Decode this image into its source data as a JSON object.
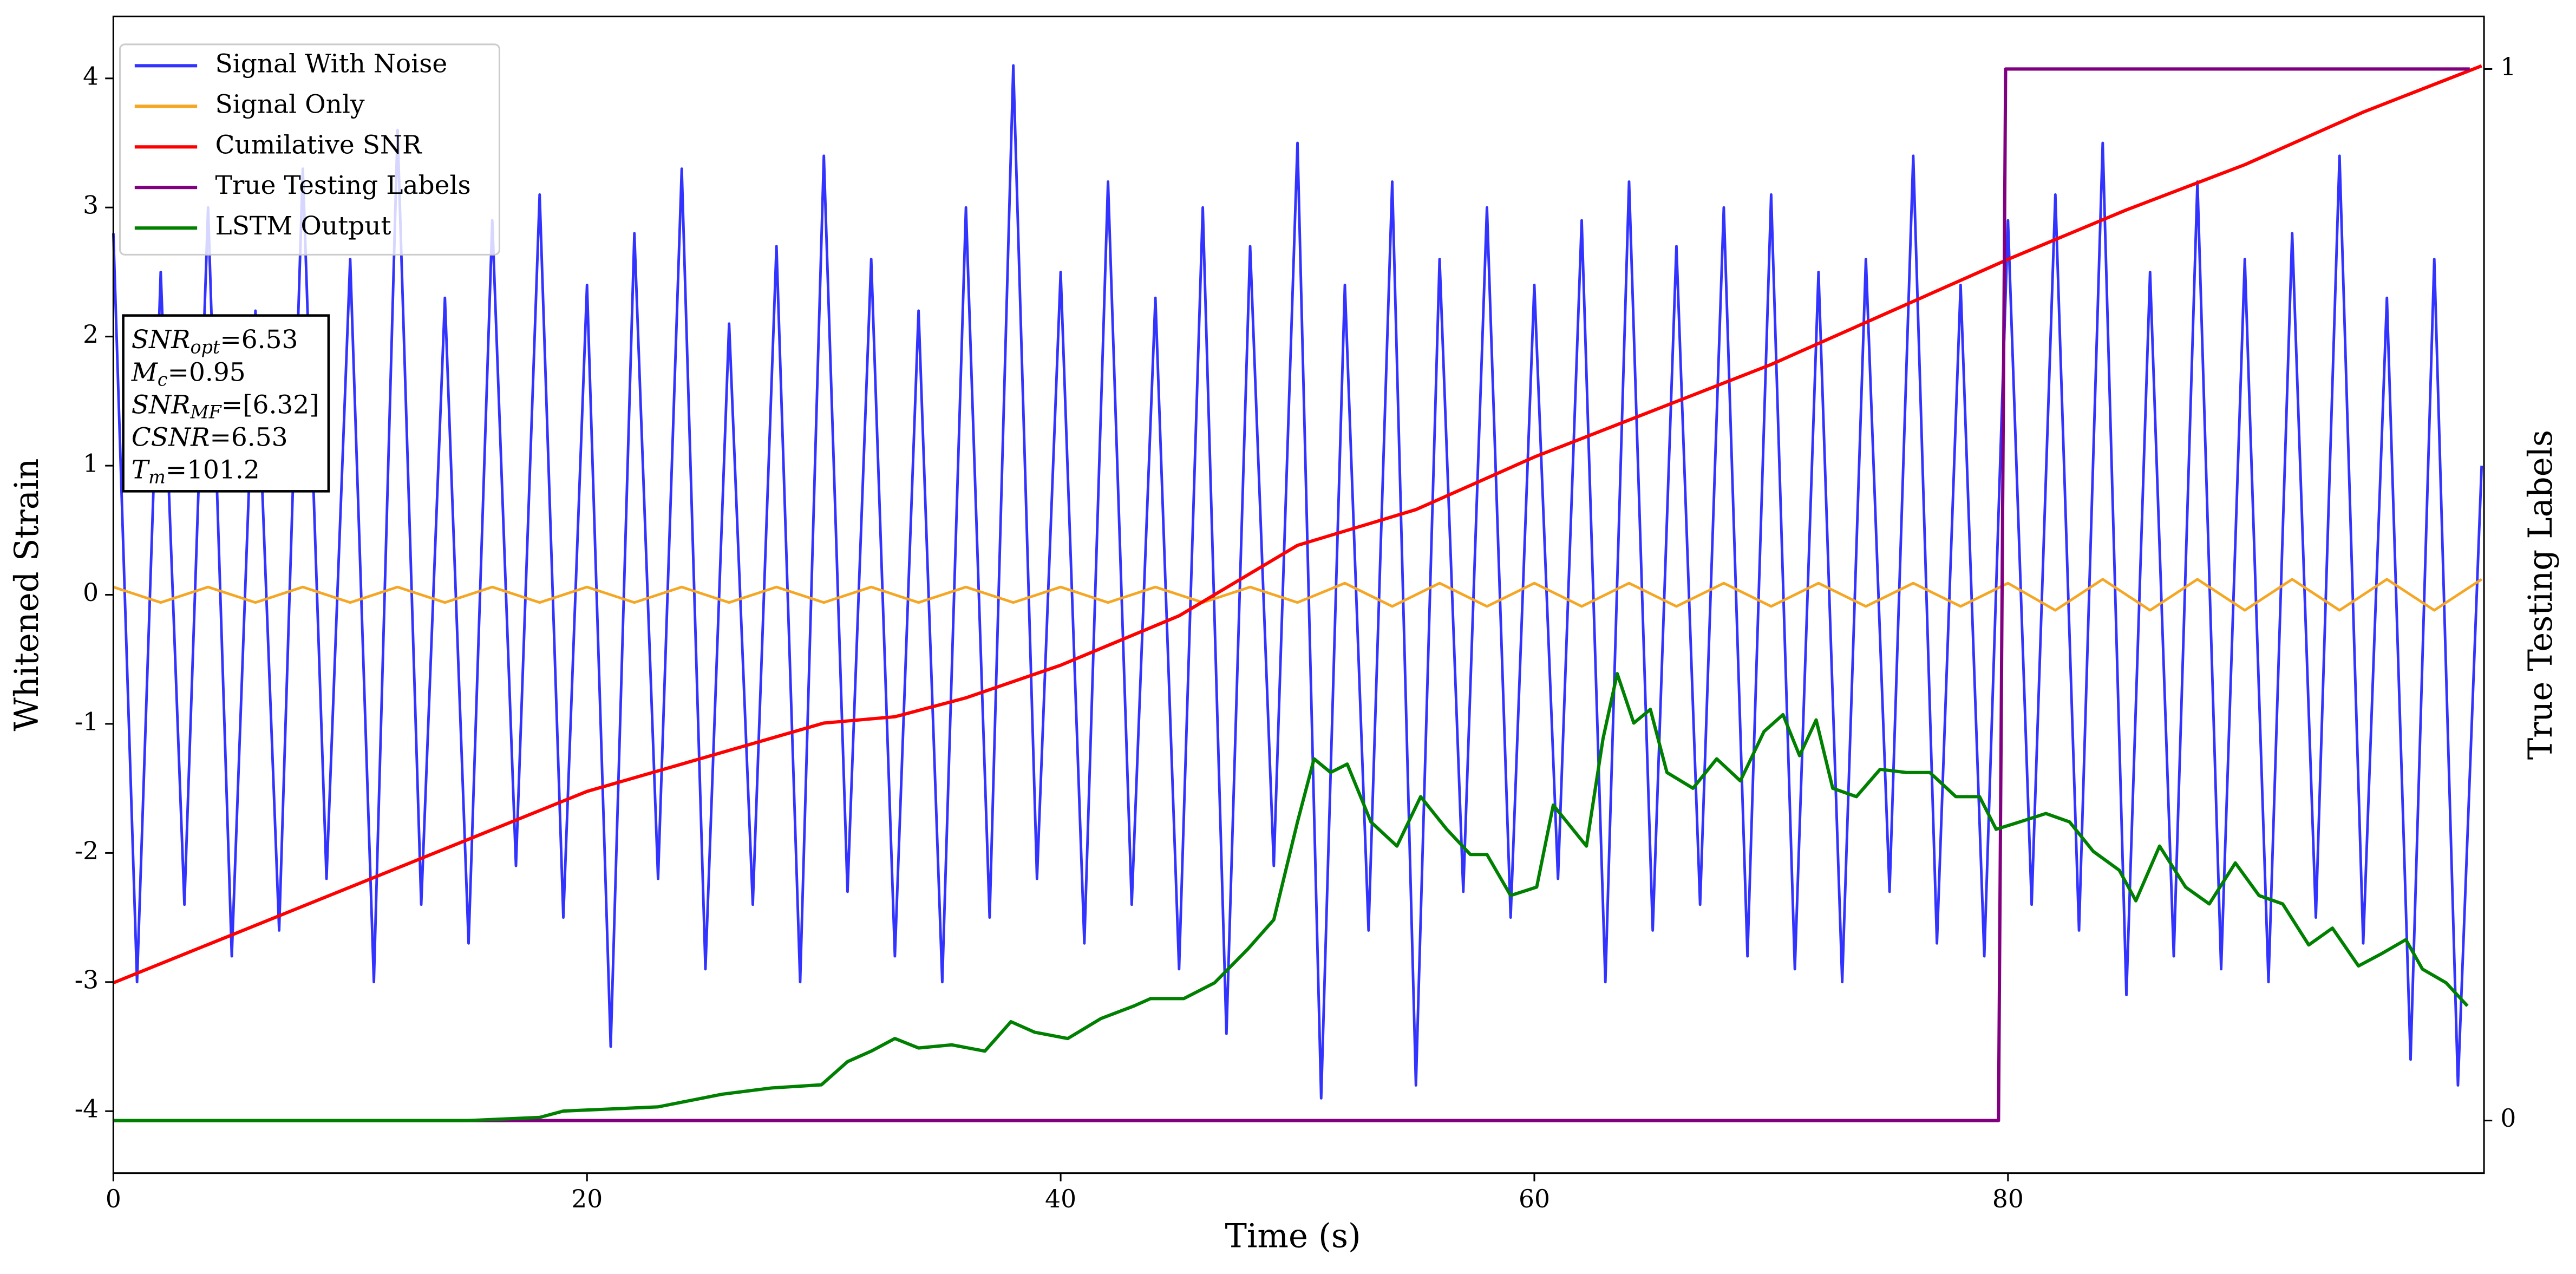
{
  "chart_data": {
    "type": "line",
    "xlabel": "Time (s)",
    "ylabel": "Whitened Strain",
    "y2label": "True Testing Labels",
    "xlim": [
      0,
      100.1
    ],
    "xticks": [
      0,
      20,
      40,
      60,
      80
    ],
    "ylim": [
      -4.48,
      4.48
    ],
    "yticks": [
      -4,
      -3,
      -2,
      -1,
      0,
      1,
      2,
      3,
      4
    ],
    "y2lim": [
      -0.05,
      1.05
    ],
    "y2ticks": [
      0,
      1
    ],
    "legend": "upper left",
    "annotation": [
      [
        "SNR",
        "opt",
        "=6.53"
      ],
      [
        "M",
        "c",
        "=0.95"
      ],
      [
        "SNR",
        "MF",
        "=[6.32]"
      ],
      [
        "CSNR",
        "",
        "=6.53"
      ],
      [
        "T",
        "m",
        "=101.2"
      ]
    ],
    "series": [
      {
        "name": "Signal With Noise",
        "color": "#3333ff",
        "x": [
          0,
          1,
          2,
          3,
          4,
          5,
          6,
          7,
          8,
          9,
          10,
          11,
          12,
          13,
          14,
          15,
          16,
          17,
          18,
          19,
          20,
          21,
          22,
          23,
          24,
          25,
          26,
          27,
          28,
          29,
          30,
          31,
          32,
          33,
          34,
          35,
          36,
          37,
          38,
          39,
          40,
          41,
          42,
          43,
          44,
          45,
          46,
          47,
          48,
          49,
          50,
          51,
          52,
          53,
          54,
          55,
          56,
          57,
          58,
          59,
          60,
          61,
          62,
          63,
          64,
          65,
          66,
          67,
          68,
          69,
          70,
          71,
          72,
          73,
          74,
          75,
          76,
          77,
          78,
          79,
          80,
          81,
          82,
          83,
          84,
          85,
          86,
          87,
          88,
          89,
          90,
          91,
          92,
          93,
          94,
          95,
          96,
          97,
          98,
          99,
          100
        ],
        "values": [
          2.8,
          -3.0,
          2.5,
          -2.4,
          3.0,
          -2.8,
          2.2,
          -2.6,
          3.3,
          -2.2,
          2.6,
          -3.0,
          3.6,
          -2.4,
          2.3,
          -2.7,
          2.9,
          -2.1,
          3.1,
          -2.5,
          2.4,
          -3.5,
          2.8,
          -2.2,
          3.3,
          -2.9,
          2.1,
          -2.4,
          2.7,
          -3.0,
          3.4,
          -2.3,
          2.6,
          -2.8,
          2.2,
          -3.0,
          3.0,
          -2.5,
          4.1,
          -2.2,
          2.5,
          -2.7,
          3.2,
          -2.4,
          2.3,
          -2.9,
          3.0,
          -3.4,
          2.7,
          -2.1,
          3.5,
          -3.9,
          2.4,
          -2.6,
          3.2,
          -3.8,
          2.6,
          -2.3,
          3.0,
          -2.5,
          2.4,
          -2.2,
          2.9,
          -3.0,
          3.2,
          -2.6,
          2.7,
          -2.4,
          3.0,
          -2.8,
          3.1,
          -2.9,
          2.5,
          -3.0,
          2.6,
          -2.3,
          3.4,
          -2.7,
          2.4,
          -2.8,
          2.9,
          -2.4,
          3.1,
          -2.6,
          3.5,
          -3.1,
          2.5,
          -2.8,
          3.2,
          -2.9,
          2.6,
          -3.0,
          2.8,
          -2.5,
          3.4,
          -2.7,
          2.3,
          -3.6,
          2.6,
          -3.8,
          1.0
        ]
      },
      {
        "name": "Signal Only",
        "color": "#f5a623",
        "x": [
          0,
          2,
          4,
          6,
          8,
          10,
          12,
          14,
          16,
          18,
          20,
          22,
          24,
          26,
          28,
          30,
          32,
          34,
          36,
          38,
          40,
          42,
          44,
          46,
          48,
          50,
          52,
          54,
          56,
          58,
          60,
          62,
          64,
          66,
          68,
          70,
          72,
          74,
          76,
          78,
          80,
          82,
          84,
          86,
          88,
          90,
          92,
          94,
          96,
          98,
          100
        ],
        "values": [
          0.06,
          -0.06,
          0.06,
          -0.06,
          0.06,
          -0.06,
          0.06,
          -0.06,
          0.06,
          -0.06,
          0.06,
          -0.06,
          0.06,
          -0.06,
          0.06,
          -0.06,
          0.06,
          -0.06,
          0.06,
          -0.06,
          0.06,
          -0.06,
          0.06,
          -0.06,
          0.06,
          -0.06,
          0.09,
          -0.09,
          0.09,
          -0.09,
          0.09,
          -0.09,
          0.09,
          -0.09,
          0.09,
          -0.09,
          0.09,
          -0.09,
          0.09,
          -0.09,
          0.09,
          -0.12,
          0.12,
          -0.12,
          0.12,
          -0.12,
          0.12,
          -0.12,
          0.12,
          -0.12,
          0.12
        ]
      },
      {
        "name": "Cumilative SNR",
        "color": "#ff0000",
        "axis": "y2",
        "x": [
          0,
          10,
          20,
          30,
          33,
          36,
          40,
          45,
          50,
          55,
          60,
          65,
          70,
          75,
          80,
          85,
          90,
          95,
          100
        ],
        "values": [
          0.131,
          0.222,
          0.313,
          0.378,
          0.384,
          0.402,
          0.433,
          0.48,
          0.547,
          0.581,
          0.631,
          0.675,
          0.719,
          0.769,
          0.819,
          0.866,
          0.909,
          0.959,
          1.003
        ]
      },
      {
        "name": "True Testing Labels",
        "color": "#800080",
        "axis": "y2",
        "x": [
          0,
          79.6,
          79.9,
          99.5
        ],
        "values": [
          0,
          0,
          1,
          1
        ]
      },
      {
        "name": "LSTM Output",
        "color": "#008000",
        "axis": "y2",
        "x": [
          0,
          15,
          18,
          19,
          23,
          25.7,
          27.8,
          29.9,
          31,
          32,
          33,
          34,
          35.4,
          36.8,
          37.9,
          38.9,
          40.3,
          41.7,
          43.1,
          43.8,
          45.2,
          46.5,
          47.9,
          49,
          50,
          50.7,
          51.4,
          52.1,
          53.1,
          54.2,
          55.2,
          56.3,
          57.3,
          58,
          59,
          60.1,
          60.8,
          62.2,
          62.9,
          63.5,
          64.2,
          64.9,
          65.6,
          66.7,
          67.7,
          68.7,
          69.7,
          70.5,
          71.2,
          71.9,
          72.6,
          73.6,
          74.6,
          75.7,
          76.7,
          77.8,
          78.8,
          79.5,
          80.5,
          81.6,
          82.6,
          83.6,
          84.7,
          85.4,
          86.4,
          87.5,
          88.5,
          89.6,
          90.6,
          91.6,
          92.7,
          93.7,
          94.8,
          95.8,
          96.8,
          97.5,
          98.5,
          99.4
        ],
        "values": [
          0,
          0,
          0.003,
          0.009,
          0.013,
          0.025,
          0.031,
          0.034,
          0.056,
          0.066,
          0.078,
          0.069,
          0.072,
          0.066,
          0.094,
          0.084,
          0.078,
          0.097,
          0.109,
          0.116,
          0.116,
          0.131,
          0.163,
          0.191,
          0.284,
          0.344,
          0.331,
          0.339,
          0.284,
          0.261,
          0.308,
          0.277,
          0.253,
          0.253,
          0.214,
          0.222,
          0.3,
          0.261,
          0.363,
          0.425,
          0.378,
          0.391,
          0.331,
          0.316,
          0.344,
          0.323,
          0.37,
          0.386,
          0.347,
          0.381,
          0.316,
          0.308,
          0.334,
          0.331,
          0.331,
          0.308,
          0.308,
          0.277,
          0.284,
          0.292,
          0.284,
          0.256,
          0.238,
          0.209,
          0.261,
          0.222,
          0.206,
          0.245,
          0.214,
          0.206,
          0.167,
          0.183,
          0.147,
          0.159,
          0.172,
          0.144,
          0.131,
          0.109
        ]
      }
    ]
  }
}
